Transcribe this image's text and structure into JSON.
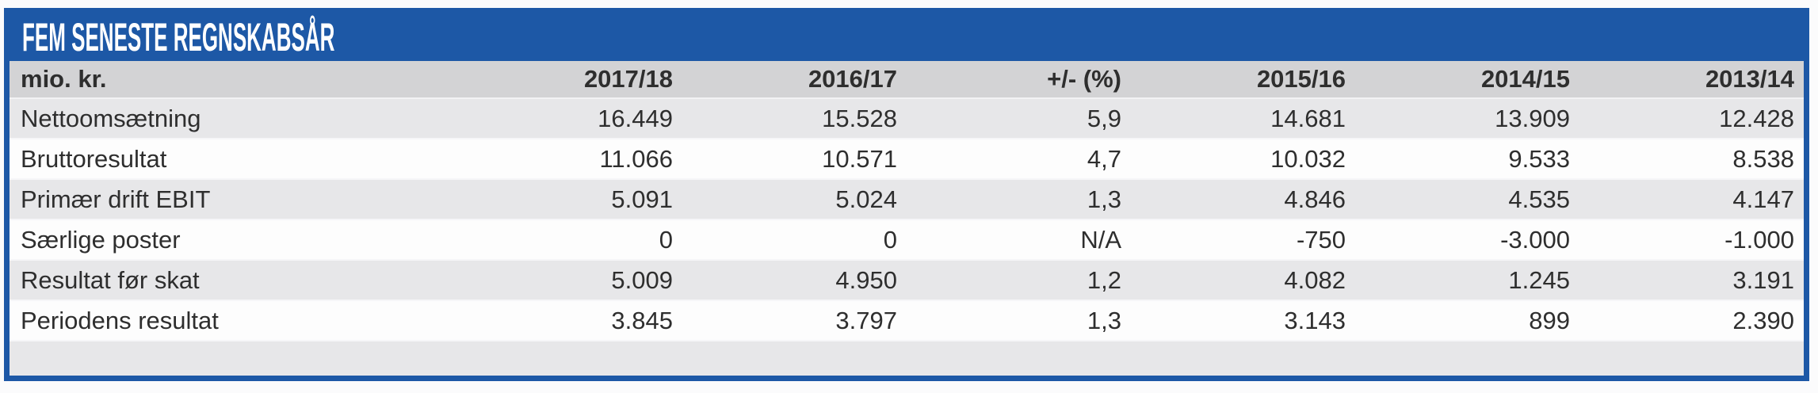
{
  "title": "FEM SENESTE REGNSKABSÅR",
  "colors": {
    "accent-blue": "#1d58a6",
    "header-gray": "#d3d3d5",
    "stripe-gray": "#e7e7e9",
    "row-white": "#fdfdfd",
    "text-dark": "#2e2e2e"
  },
  "chart_data": {
    "type": "table",
    "title": "FEM SENESTE REGNSKABSÅR",
    "unit_label": "mio. kr.",
    "columns": [
      "2017/18",
      "2016/17",
      "+/- (%)",
      "2015/16",
      "2014/15",
      "2013/14"
    ],
    "rows": [
      {
        "label": "Nettoomsætning",
        "values": [
          "16.449",
          "15.528",
          "5,9",
          "14.681",
          "13.909",
          "12.428"
        ]
      },
      {
        "label": "Bruttoresultat",
        "values": [
          "11.066",
          "10.571",
          "4,7",
          "10.032",
          "9.533",
          "8.538"
        ]
      },
      {
        "label": "Primær drift EBIT",
        "values": [
          "5.091",
          "5.024",
          "1,3",
          "4.846",
          "4.535",
          "4.147"
        ]
      },
      {
        "label": "Særlige poster",
        "values": [
          "0",
          "0",
          "N/A",
          "-750",
          "-3.000",
          "-1.000"
        ]
      },
      {
        "label": "Resultat før skat",
        "values": [
          "5.009",
          "4.950",
          "1,2",
          "4.082",
          "1.245",
          "3.191"
        ]
      },
      {
        "label": "Periodens resultat",
        "values": [
          "3.845",
          "3.797",
          "1,3",
          "3.143",
          "899",
          "2.390"
        ]
      }
    ]
  }
}
